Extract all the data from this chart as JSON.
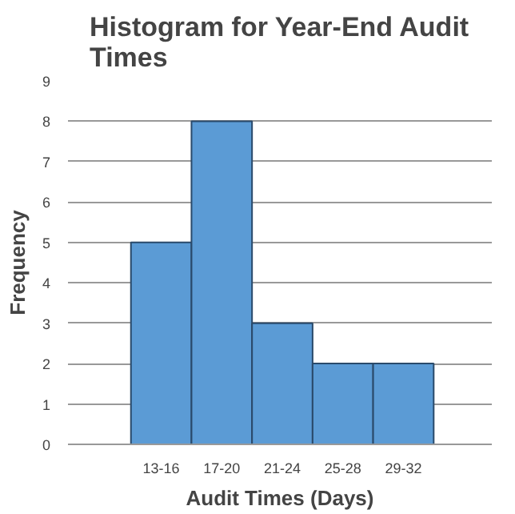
{
  "chart_data": {
    "type": "bar",
    "title": "Histogram for Year-End Audit Times",
    "xlabel": "Audit Times (Days)",
    "ylabel": "Frequency",
    "categories": [
      "13-16",
      "17-20",
      "21-24",
      "25-28",
      "29-32"
    ],
    "values": [
      5,
      8,
      3,
      2,
      2
    ],
    "color": "#5b9bd5",
    "ylim": [
      0,
      9
    ],
    "yticks": [
      0,
      1,
      2,
      3,
      4,
      5,
      6,
      7,
      8,
      9
    ],
    "grid": "y"
  }
}
